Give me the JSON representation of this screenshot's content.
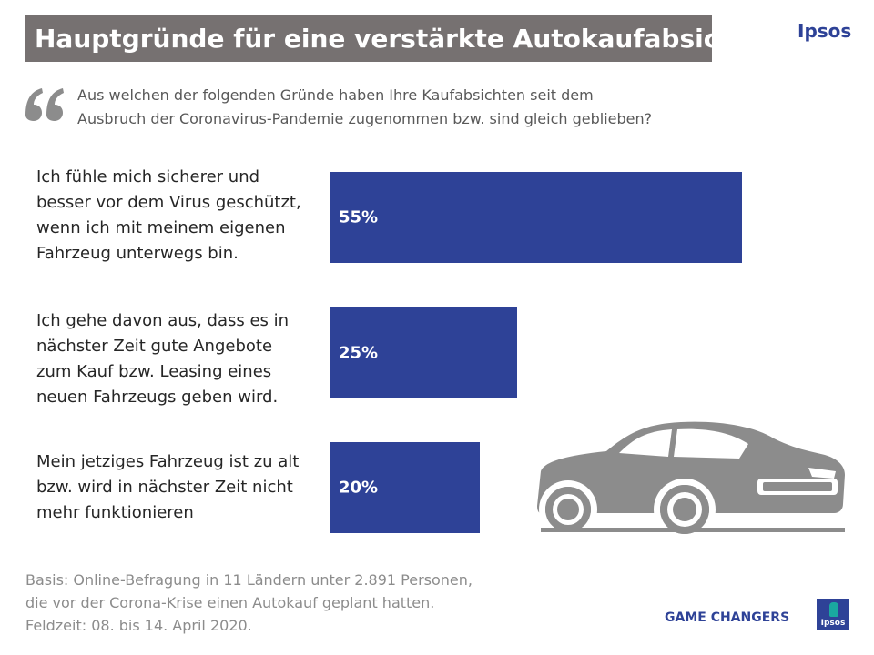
{
  "header": {
    "title": "Hauptgründe für eine verstärkte Autokaufabsicht",
    "brand": "Ipsos"
  },
  "question": {
    "lines": [
      "Aus welchen der folgenden Gründe haben Ihre Kaufabsichten seit dem",
      "Ausbruch der Coronavirus-Pandemie  zugenommen bzw. sind gleich geblieben?"
    ]
  },
  "chart_data": {
    "type": "bar",
    "orientation": "horizontal",
    "title": "Hauptgründe für eine verstärkte Autokaufabsicht",
    "xlabel": "",
    "ylabel": "",
    "xlim": [
      0,
      55
    ],
    "categories": [
      {
        "lines": [
          "Ich fühle mich sicherer und",
          "besser vor dem Virus geschützt,",
          "wenn ich mit meinem eigenen",
          "Fahrzeug unterwegs bin."
        ],
        "value": 55,
        "label": "55%"
      },
      {
        "lines": [
          "Ich gehe davon aus, dass es in",
          "nächster Zeit gute Angebote",
          "zum Kauf bzw. Leasing eines",
          "neuen Fahrzeugs geben wird."
        ],
        "value": 25,
        "label": "25%"
      },
      {
        "lines": [
          "Mein jetziges Fahrzeug ist zu alt",
          "bzw. wird in nächster Zeit nicht",
          "mehr funktionieren"
        ],
        "value": 20,
        "label": "20%"
      }
    ],
    "bar_color": "#2e4297"
  },
  "source": {
    "lines": [
      "Basis: Online-Befragung  in 11 Ländern unter 2.891 Personen,",
      "die vor der Corona-Krise  einen Autokauf geplant hatten.",
      "Feldzeit: 08. bis 14. April 2020."
    ]
  },
  "footer": {
    "tagline": "GAME CHANGERS",
    "logo_text": "Ipsos"
  },
  "colors": {
    "title_bg": "#767171",
    "accent": "#2e4297",
    "illustration": "#8c8c8c"
  },
  "icons": {
    "quote": "quote-icon",
    "car": "car-icon"
  }
}
